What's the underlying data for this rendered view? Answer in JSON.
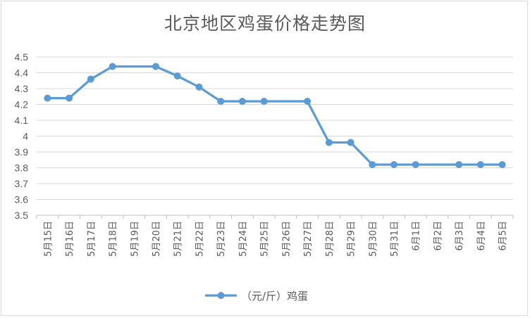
{
  "chart_data": {
    "type": "line",
    "title": "北京地区鸡蛋价格走势图",
    "xlabel": "",
    "ylabel": "",
    "ylim": [
      3.5,
      4.5
    ],
    "yticks": [
      "4.5",
      "4.4",
      "4.3",
      "4.2",
      "4.1",
      "4",
      "3.9",
      "3.8",
      "3.7",
      "3.6",
      "3.5"
    ],
    "grid": true,
    "legend": "bottom",
    "categories": [
      "5月15日",
      "5月16日",
      "5月17日",
      "5月18日",
      "5月19日",
      "5月20日",
      "5月21日",
      "5月22日",
      "5月23日",
      "5月24日",
      "5月25日",
      "5月26日",
      "5月27日",
      "5月28日",
      "5月29日",
      "5月30日",
      "5月31日",
      "6月1日",
      "6月2日",
      "6月3日",
      "6月4日",
      "6月5日"
    ],
    "series": [
      {
        "name": "（元/斤）鸡蛋",
        "color": "#5b9bd5",
        "values": [
          4.24,
          4.24,
          4.36,
          4.44,
          null,
          4.44,
          4.38,
          4.31,
          4.22,
          4.22,
          4.22,
          null,
          4.22,
          3.96,
          3.96,
          3.82,
          3.82,
          3.82,
          null,
          3.82,
          3.82,
          3.82
        ]
      }
    ]
  }
}
